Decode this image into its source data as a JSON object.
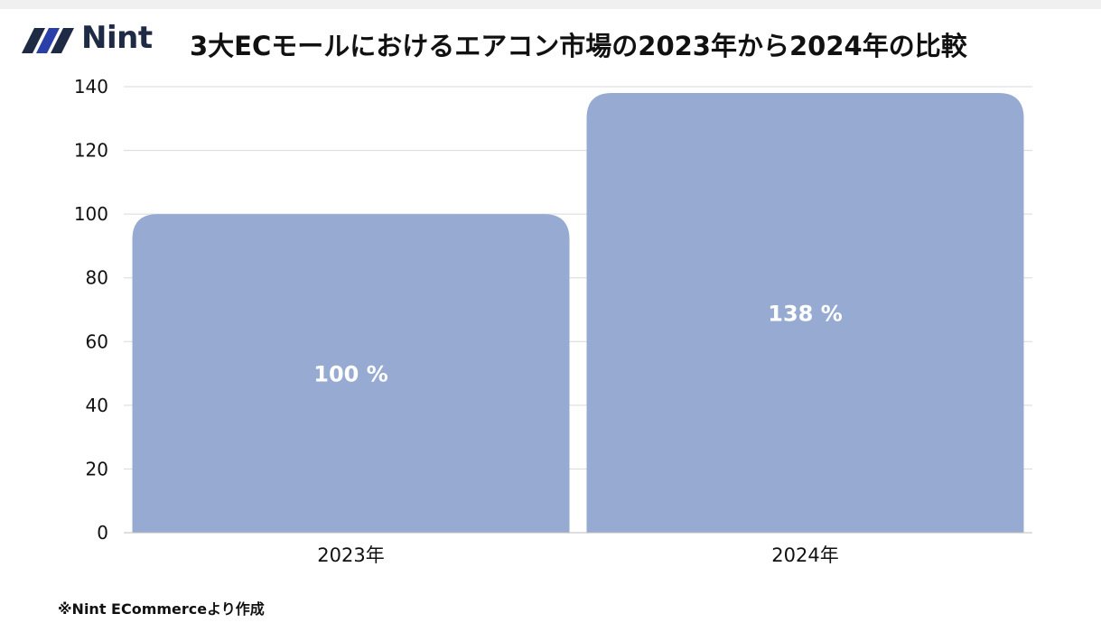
{
  "brand": {
    "name": "Nint",
    "logo_icon": "nint-logo-icon",
    "color": "#1f2a44"
  },
  "title": "3大ECモールにおけるエアコン市場の2023年から2024年の比較",
  "footnote": "※Nint ECommerceより作成",
  "chart_data": {
    "type": "bar",
    "title": "3大ECモールにおけるエアコン市場の2023年から2024年の比較",
    "categories": [
      "2023年",
      "2024年"
    ],
    "values": [
      100,
      138
    ],
    "data_labels": [
      "100 %",
      "138 %"
    ],
    "xlabel": "",
    "ylabel": "",
    "ylim": [
      0,
      140
    ],
    "yticks": [
      0,
      20,
      40,
      60,
      80,
      100,
      120,
      140
    ],
    "grid": true,
    "legend": "none",
    "bar_color": "#97abd2",
    "label_color": "#ffffff",
    "grid_color": "#d9d9d9"
  }
}
